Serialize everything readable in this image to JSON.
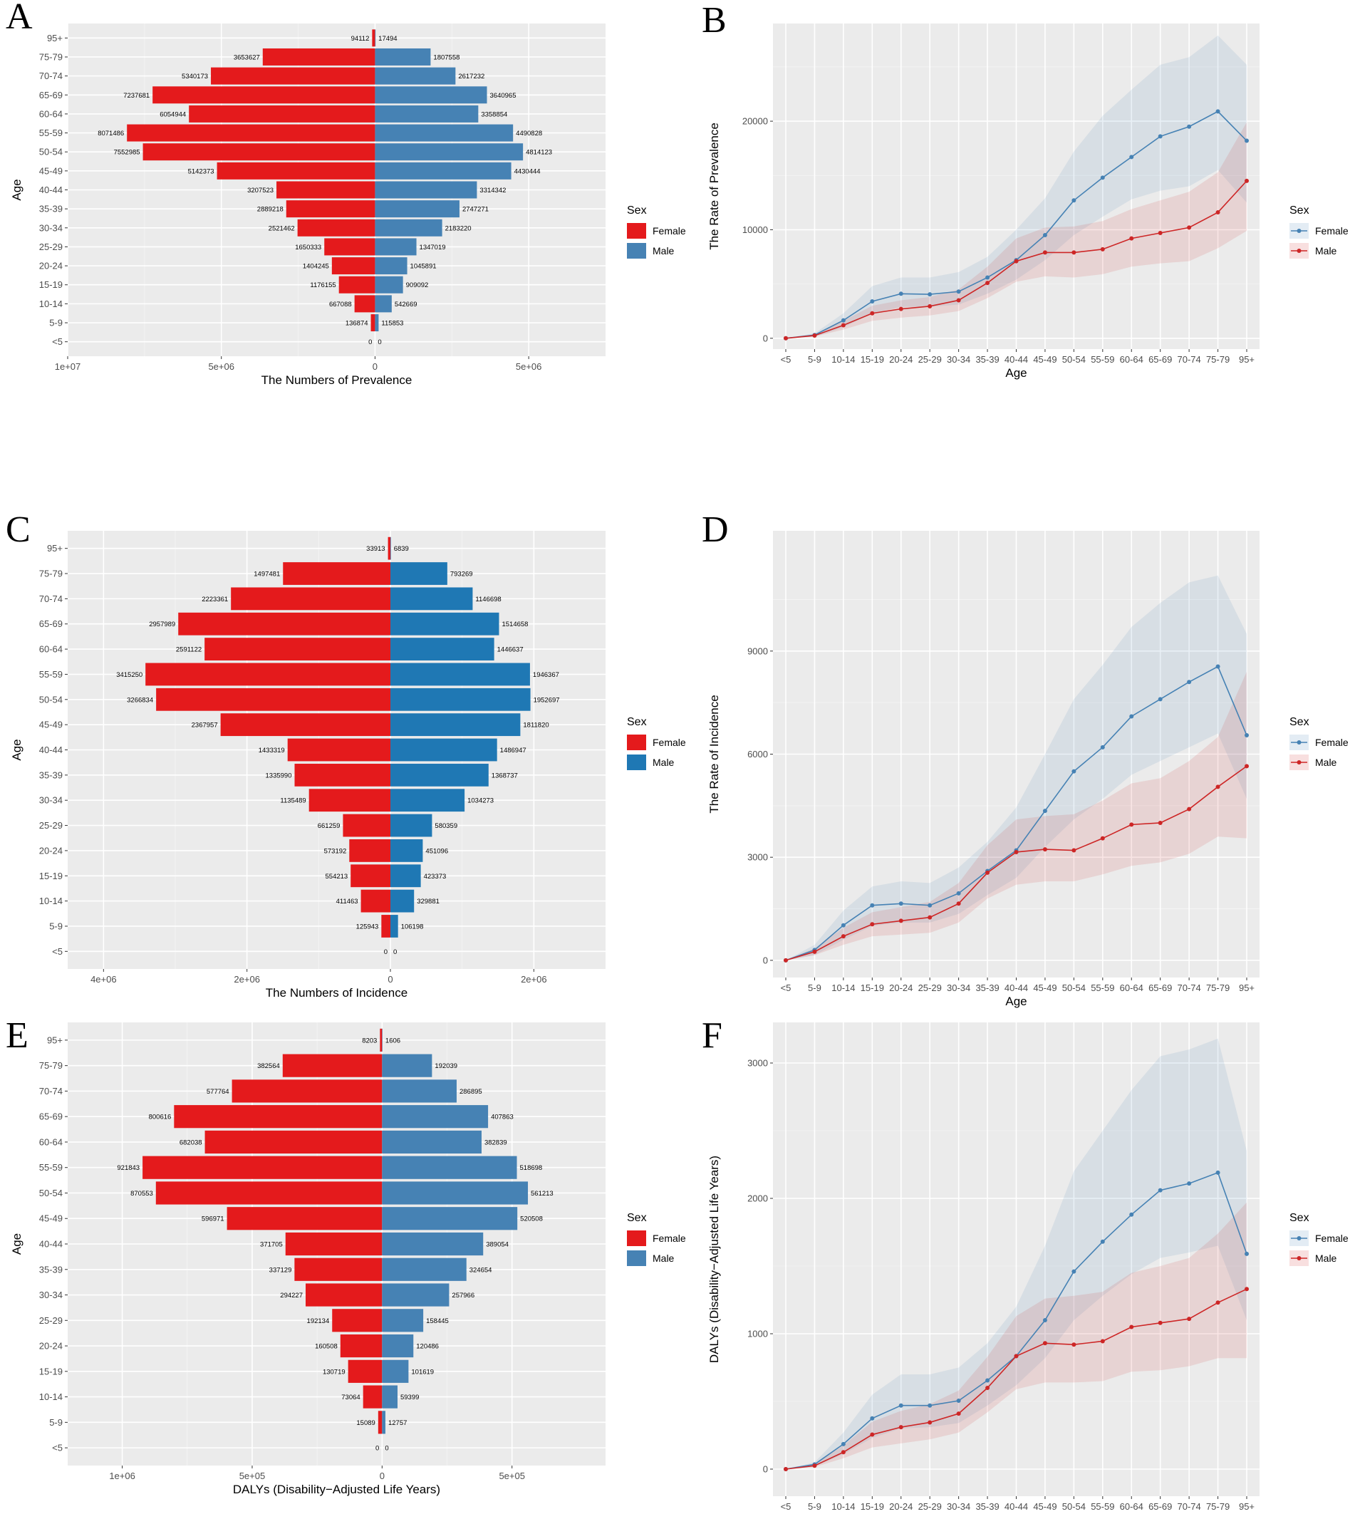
{
  "chart_data": [
    {
      "panel": "A",
      "type": "bar",
      "orientation": "horizontal-pyramid",
      "categories": [
        "<5",
        "5-9",
        "10-14",
        "15-19",
        "20-24",
        "25-29",
        "30-34",
        "35-39",
        "40-44",
        "45-49",
        "50-54",
        "55-59",
        "60-64",
        "65-69",
        "70-74",
        "75-79",
        "95+"
      ],
      "series": [
        {
          "name": "Female",
          "color": "#e41a1c",
          "values": [
            0,
            136874,
            667088,
            1176155,
            1404245,
            1650333,
            2521462,
            2889218,
            3207523,
            5142373,
            7552985,
            8071486,
            6054944,
            7237681,
            5340173,
            3653627,
            94112
          ]
        },
        {
          "name": "Male",
          "color": "#4682b4",
          "values": [
            0,
            115853,
            542669,
            909092,
            1045891,
            1347019,
            2183220,
            2747271,
            3314342,
            4430444,
            4814123,
            4490828,
            3358854,
            3640965,
            2617232,
            1807558,
            17494
          ]
        }
      ],
      "value_labels": {
        "female": [
          "0",
          "136874",
          "667088",
          "1176155",
          "1404245",
          "1650333",
          "2521462",
          "2889218",
          "3207523",
          "5142373",
          "7552985",
          "8071486",
          "6054944",
          "7237681",
          "5340173",
          "3653627",
          "94112"
        ],
        "male": [
          "0",
          "115853",
          "542669",
          "909092",
          "1045891",
          "1347019",
          "2183220",
          "2747271",
          "3314342",
          "4430444",
          "4814123",
          "4490828",
          "3358854",
          "3640965",
          "2617232",
          "1807558",
          "17494"
        ]
      },
      "xlim": [
        -10000000,
        7500000
      ],
      "ticks": [
        -10000000,
        -5000000,
        0,
        5000000
      ],
      "tick_labels": [
        "1e+07",
        "5e+06",
        "0",
        "5e+06"
      ],
      "xlabel": "The Numbers of Prevalence",
      "ylabel": "Age",
      "legend": {
        "title": "Sex",
        "labels": [
          "Female",
          "Male"
        ]
      }
    },
    {
      "panel": "B",
      "type": "line",
      "categories": [
        "<5",
        "5-9",
        "10-14",
        "15-19",
        "20-24",
        "25-29",
        "30-34",
        "35-39",
        "40-44",
        "45-49",
        "50-54",
        "55-59",
        "60-64",
        "65-69",
        "70-74",
        "75-79",
        "95+"
      ],
      "series": [
        {
          "name": "Female",
          "color": "#4682b4",
          "values": [
            0,
            300,
            1650,
            3400,
            4100,
            4050,
            4300,
            5600,
            7200,
            9500,
            12700,
            14800,
            16700,
            18600,
            19500,
            20900,
            18200
          ],
          "lower": [
            0,
            150,
            1000,
            2300,
            2900,
            2900,
            3100,
            4100,
            5400,
            7200,
            9500,
            11200,
            12800,
            13600,
            14000,
            15500,
            12500
          ],
          "upper": [
            0,
            450,
            2300,
            4800,
            5600,
            5600,
            6100,
            7500,
            10000,
            12900,
            17200,
            20500,
            22900,
            25200,
            25900,
            27900,
            25200
          ]
        },
        {
          "name": "Male",
          "color": "#cd2626",
          "values": [
            0,
            250,
            1200,
            2300,
            2700,
            2950,
            3500,
            5100,
            7100,
            7900,
            7900,
            8200,
            9200,
            9700,
            10200,
            11600,
            14500
          ],
          "lower": [
            0,
            150,
            800,
            1600,
            1900,
            2100,
            2500,
            3700,
            5200,
            5700,
            5600,
            5900,
            6600,
            6900,
            7100,
            8300,
            9900
          ],
          "upper": [
            0,
            350,
            1600,
            3000,
            3500,
            3800,
            4500,
            6600,
            9200,
            10200,
            10300,
            10800,
            11900,
            12700,
            13500,
            15300,
            19900
          ]
        }
      ],
      "ylim": [
        -1000,
        29000
      ],
      "yticks": [
        0,
        10000,
        20000
      ],
      "ytick_labels": [
        "0",
        "10000",
        "20000"
      ],
      "xlabel": "Age",
      "ylabel": "The Rate of Prevalence",
      "legend": {
        "title": "Sex",
        "labels": [
          "Female",
          "Male"
        ]
      }
    },
    {
      "panel": "C",
      "type": "bar",
      "orientation": "horizontal-pyramid",
      "categories": [
        "<5",
        "5-9",
        "10-14",
        "15-19",
        "20-24",
        "25-29",
        "30-34",
        "35-39",
        "40-44",
        "45-49",
        "50-54",
        "55-59",
        "60-64",
        "65-69",
        "70-74",
        "75-79",
        "95+"
      ],
      "series": [
        {
          "name": "Female",
          "color": "#e41a1c",
          "values": [
            0,
            125943,
            411463,
            554213,
            573192,
            661259,
            1135489,
            1335990,
            1433319,
            2367957,
            3266834,
            3415250,
            2591122,
            2957989,
            2223361,
            1497481,
            33913
          ]
        },
        {
          "name": "Male",
          "color": "#1f78b4",
          "values": [
            0,
            106198,
            329881,
            423373,
            451096,
            580359,
            1034273,
            1368737,
            1486947,
            1811820,
            1952697,
            1946367,
            1446637,
            1514658,
            1146698,
            793269,
            6839
          ]
        }
      ],
      "value_labels": {
        "female": [
          "0",
          "125943",
          "411463",
          "554213",
          "573192",
          "661259",
          "1135489",
          "1335990",
          "1433319",
          "2367957",
          "3266834",
          "3415250",
          "2591122",
          "2957989",
          "2223361",
          "1497481",
          "33913"
        ],
        "male": [
          "0",
          "106198",
          "329881",
          "423373",
          "451096",
          "580359",
          "1034273",
          "1368737",
          "1486947",
          "1811820",
          "1952697",
          "1946367",
          "1446637",
          "1514658",
          "1146698",
          "793269",
          "6839"
        ]
      },
      "xlim": [
        -4500000,
        3000000
      ],
      "ticks": [
        -4000000,
        -2000000,
        0,
        2000000
      ],
      "tick_labels": [
        "4e+06",
        "2e+06",
        "0",
        "2e+06"
      ],
      "xlabel": "The Numbers of Incidence",
      "ylabel": "Age",
      "legend": {
        "title": "Sex",
        "labels": [
          "Female",
          "Male"
        ]
      }
    },
    {
      "panel": "D",
      "type": "line",
      "categories": [
        "<5",
        "5-9",
        "10-14",
        "15-19",
        "20-24",
        "25-29",
        "30-34",
        "35-39",
        "40-44",
        "45-49",
        "50-54",
        "55-59",
        "60-64",
        "65-69",
        "70-74",
        "75-79",
        "95+"
      ],
      "series": [
        {
          "name": "Female",
          "color": "#4682b4",
          "values": [
            0,
            300,
            1020,
            1600,
            1650,
            1600,
            1950,
            2600,
            3200,
            4350,
            5500,
            6200,
            7100,
            7600,
            8100,
            8550,
            6550
          ],
          "lower": [
            0,
            150,
            600,
            1000,
            1100,
            1100,
            1350,
            1900,
            2400,
            3300,
            4100,
            4700,
            5400,
            5800,
            6200,
            6600,
            4700
          ],
          "upper": [
            0,
            450,
            1450,
            2150,
            2300,
            2250,
            2700,
            3450,
            4450,
            6000,
            7600,
            8600,
            9700,
            10400,
            11000,
            11200,
            9500
          ]
        },
        {
          "name": "Male",
          "color": "#cd2626",
          "values": [
            0,
            250,
            700,
            1050,
            1150,
            1250,
            1650,
            2550,
            3150,
            3230,
            3200,
            3550,
            3950,
            4000,
            4400,
            5050,
            5650
          ],
          "lower": [
            0,
            150,
            450,
            700,
            750,
            800,
            1100,
            1800,
            2200,
            2300,
            2300,
            2500,
            2750,
            2850,
            3100,
            3600,
            3550
          ],
          "upper": [
            0,
            350,
            950,
            1400,
            1550,
            1700,
            2250,
            3350,
            4100,
            4200,
            4250,
            4650,
            5150,
            5300,
            5800,
            6500,
            8400
          ]
        }
      ],
      "ylim": [
        -500,
        12500
      ],
      "yticks": [
        0,
        3000,
        6000,
        9000
      ],
      "ytick_labels": [
        "0",
        "3000",
        "6000",
        "9000"
      ],
      "xlabel": "Age",
      "ylabel": "The Rate of Incidence",
      "legend": {
        "title": "Sex",
        "labels": [
          "Female",
          "Male"
        ]
      }
    },
    {
      "panel": "E",
      "type": "bar",
      "orientation": "horizontal-pyramid",
      "categories": [
        "<5",
        "5-9",
        "10-14",
        "15-19",
        "20-24",
        "25-29",
        "30-34",
        "35-39",
        "40-44",
        "45-49",
        "50-54",
        "55-59",
        "60-64",
        "65-69",
        "70-74",
        "75-79",
        "95+"
      ],
      "series": [
        {
          "name": "Female",
          "color": "#e41a1c",
          "values": [
            0,
            15089,
            73064,
            130719,
            160508,
            192134,
            294227,
            337129,
            371705,
            596971,
            870553,
            921843,
            682038,
            800616,
            577764,
            382564,
            8203
          ]
        },
        {
          "name": "Male",
          "color": "#4682b4",
          "values": [
            0,
            12757,
            59399,
            101619,
            120486,
            158445,
            257966,
            324654,
            389054,
            520508,
            561213,
            518698,
            382839,
            407863,
            286895,
            192039,
            1606
          ]
        }
      ],
      "value_labels": {
        "female": [
          "0",
          "15089",
          "73064",
          "130719",
          "160508",
          "192134",
          "294227",
          "337129",
          "371705",
          "596971",
          "870553",
          "921843",
          "682038",
          "800616",
          "577764",
          "382564",
          "8203"
        ],
        "male": [
          "0",
          "12757",
          "59399",
          "101619",
          "120486",
          "158445",
          "257966",
          "324654",
          "389054",
          "520508",
          "561213",
          "518698",
          "382839",
          "407863",
          "286895",
          "192039",
          "1606"
        ]
      },
      "xlim": [
        -1210000,
        860000
      ],
      "ticks": [
        -1000000,
        -500000,
        0,
        500000
      ],
      "tick_labels": [
        "1e+06",
        "5e+05",
        "0",
        "5e+05"
      ],
      "xlabel": "DALYs (Disability−Adjusted Life Years)",
      "ylabel": "Age",
      "legend": {
        "title": "Sex",
        "labels": [
          "Female",
          "Male"
        ]
      }
    },
    {
      "panel": "F",
      "type": "line",
      "categories": [
        "<5",
        "5-9",
        "10-14",
        "15-19",
        "20-24",
        "25-29",
        "30-34",
        "35-39",
        "40-44",
        "45-49",
        "50-54",
        "55-59",
        "60-64",
        "65-69",
        "70-74",
        "75-79",
        "95+"
      ],
      "series": [
        {
          "name": "Female",
          "color": "#4682b4",
          "values": [
            0,
            35,
            185,
            375,
            470,
            470,
            505,
            655,
            835,
            1100,
            1460,
            1680,
            1880,
            2060,
            2110,
            2190,
            1590
          ],
          "lower": [
            0,
            20,
            110,
            230,
            300,
            310,
            340,
            470,
            620,
            820,
            1100,
            1280,
            1440,
            1560,
            1600,
            1650,
            1100
          ],
          "upper": [
            0,
            50,
            270,
            550,
            700,
            700,
            750,
            930,
            1200,
            1650,
            2200,
            2500,
            2800,
            3050,
            3100,
            3180,
            2350
          ]
        },
        {
          "name": "Male",
          "color": "#cd2626",
          "values": [
            0,
            25,
            125,
            255,
            310,
            345,
            410,
            600,
            835,
            930,
            920,
            945,
            1050,
            1080,
            1110,
            1230,
            1330
          ],
          "lower": [
            0,
            15,
            80,
            160,
            190,
            220,
            270,
            420,
            590,
            640,
            640,
            650,
            720,
            730,
            760,
            820,
            820
          ],
          "upper": [
            0,
            35,
            175,
            350,
            430,
            480,
            580,
            830,
            1130,
            1260,
            1280,
            1310,
            1450,
            1500,
            1560,
            1740,
            1970
          ]
        }
      ],
      "ylim": [
        -200,
        3300
      ],
      "yticks": [
        0,
        1000,
        2000,
        3000
      ],
      "ytick_labels": [
        "0",
        "1000",
        "2000",
        "3000"
      ],
      "xlabel": "Age",
      "ylabel": "DALYs (Disability−Adjusted Life Years)",
      "legend": {
        "title": "Sex",
        "labels": [
          "Female",
          "Male"
        ]
      }
    }
  ]
}
